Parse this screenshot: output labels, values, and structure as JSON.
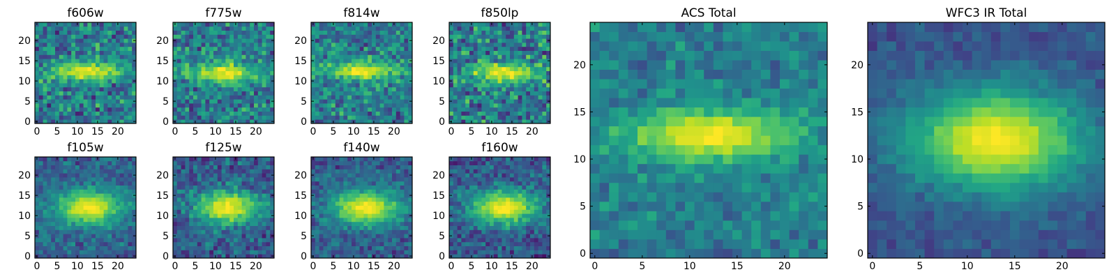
{
  "figure_title": "",
  "chart_data": [
    {
      "type": "heatmap",
      "title": "f606w",
      "xlim": [
        0,
        24
      ],
      "ylim": [
        0,
        24
      ],
      "xticks": [
        0,
        5,
        10,
        15,
        20
      ],
      "yticks": [
        0,
        5,
        10,
        15,
        20
      ],
      "colormap": "viridis",
      "grid": [
        25,
        25
      ],
      "source_center": [
        12,
        12.5
      ],
      "source_width": [
        6,
        1.6
      ],
      "peak": 0.95,
      "noise": 0.35,
      "background": 0.42,
      "seed": 11
    },
    {
      "type": "heatmap",
      "title": "f775w",
      "xlim": [
        0,
        24
      ],
      "ylim": [
        0,
        24
      ],
      "xticks": [
        0,
        5,
        10,
        15,
        20
      ],
      "yticks": [
        0,
        5,
        10,
        15,
        20
      ],
      "colormap": "viridis",
      "grid": [
        25,
        25
      ],
      "source_center": [
        12,
        12
      ],
      "source_width": [
        6,
        1.8
      ],
      "peak": 0.95,
      "noise": 0.33,
      "background": 0.42,
      "seed": 23
    },
    {
      "type": "heatmap",
      "title": "f814w",
      "xlim": [
        0,
        24
      ],
      "ylim": [
        0,
        24
      ],
      "xticks": [
        0,
        5,
        10,
        15,
        20
      ],
      "yticks": [
        0,
        5,
        10,
        15,
        20
      ],
      "colormap": "viridis",
      "grid": [
        25,
        25
      ],
      "source_center": [
        12,
        12.5
      ],
      "source_width": [
        6,
        1.8
      ],
      "peak": 0.95,
      "noise": 0.33,
      "background": 0.42,
      "seed": 37
    },
    {
      "type": "heatmap",
      "title": "f850lp",
      "xlim": [
        0,
        24
      ],
      "ylim": [
        0,
        24
      ],
      "xticks": [
        0,
        5,
        10,
        15,
        20
      ],
      "yticks": [
        0,
        5,
        10,
        15,
        20
      ],
      "colormap": "viridis",
      "grid": [
        25,
        25
      ],
      "source_center": [
        13,
        12
      ],
      "source_width": [
        6,
        1.8
      ],
      "peak": 0.9,
      "noise": 0.38,
      "background": 0.42,
      "seed": 41
    },
    {
      "type": "heatmap",
      "title": "f105w",
      "xlim": [
        0,
        24
      ],
      "ylim": [
        0,
        24
      ],
      "xticks": [
        0,
        5,
        10,
        15,
        20
      ],
      "yticks": [
        0,
        5,
        10,
        15,
        20
      ],
      "colormap": "viridis",
      "grid": [
        25,
        25
      ],
      "source_center": [
        13,
        12
      ],
      "source_width": [
        6,
        3
      ],
      "peak": 1.0,
      "noise": 0.22,
      "background": 0.32,
      "seed": 53
    },
    {
      "type": "heatmap",
      "title": "f125w",
      "xlim": [
        0,
        24
      ],
      "ylim": [
        0,
        24
      ],
      "xticks": [
        0,
        5,
        10,
        15,
        20
      ],
      "yticks": [
        0,
        5,
        10,
        15,
        20
      ],
      "colormap": "viridis",
      "grid": [
        25,
        25
      ],
      "source_center": [
        13,
        12
      ],
      "source_width": [
        5.5,
        3
      ],
      "peak": 1.0,
      "noise": 0.25,
      "background": 0.3,
      "seed": 67
    },
    {
      "type": "heatmap",
      "title": "f140w",
      "xlim": [
        0,
        24
      ],
      "ylim": [
        0,
        24
      ],
      "xticks": [
        0,
        5,
        10,
        15,
        20
      ],
      "yticks": [
        0,
        5,
        10,
        15,
        20
      ],
      "colormap": "viridis",
      "grid": [
        25,
        25
      ],
      "source_center": [
        13,
        12
      ],
      "source_width": [
        6,
        3
      ],
      "peak": 1.0,
      "noise": 0.22,
      "background": 0.3,
      "seed": 71
    },
    {
      "type": "heatmap",
      "title": "f160w",
      "xlim": [
        0,
        24
      ],
      "ylim": [
        0,
        24
      ],
      "xticks": [
        0,
        5,
        10,
        15,
        20
      ],
      "yticks": [
        0,
        5,
        10,
        15,
        20
      ],
      "colormap": "viridis",
      "grid": [
        25,
        25
      ],
      "source_center": [
        13,
        12
      ],
      "source_width": [
        6,
        3
      ],
      "peak": 1.0,
      "noise": 0.25,
      "background": 0.28,
      "seed": 83
    },
    {
      "type": "heatmap",
      "title": "ACS Total",
      "xlim": [
        0,
        24
      ],
      "ylim": [
        0,
        24
      ],
      "xticks": [
        0,
        5,
        10,
        15,
        20
      ],
      "yticks": [
        0,
        5,
        10,
        15,
        20
      ],
      "colormap": "viridis",
      "grid": [
        25,
        25
      ],
      "source_center": [
        12,
        12.5
      ],
      "source_width": [
        6.5,
        2
      ],
      "peak": 1.0,
      "noise": 0.2,
      "background": 0.42,
      "seed": 97
    },
    {
      "type": "heatmap",
      "title": "WFC3 IR Total",
      "xlim": [
        0,
        24
      ],
      "ylim": [
        0,
        24
      ],
      "xticks": [
        0,
        5,
        10,
        15,
        20
      ],
      "yticks": [
        0,
        5,
        10,
        15,
        20
      ],
      "colormap": "viridis",
      "grid": [
        25,
        25
      ],
      "source_center": [
        13,
        12
      ],
      "source_width": [
        6.5,
        3.8
      ],
      "peak": 1.0,
      "noise": 0.12,
      "background": 0.26,
      "seed": 101
    }
  ]
}
